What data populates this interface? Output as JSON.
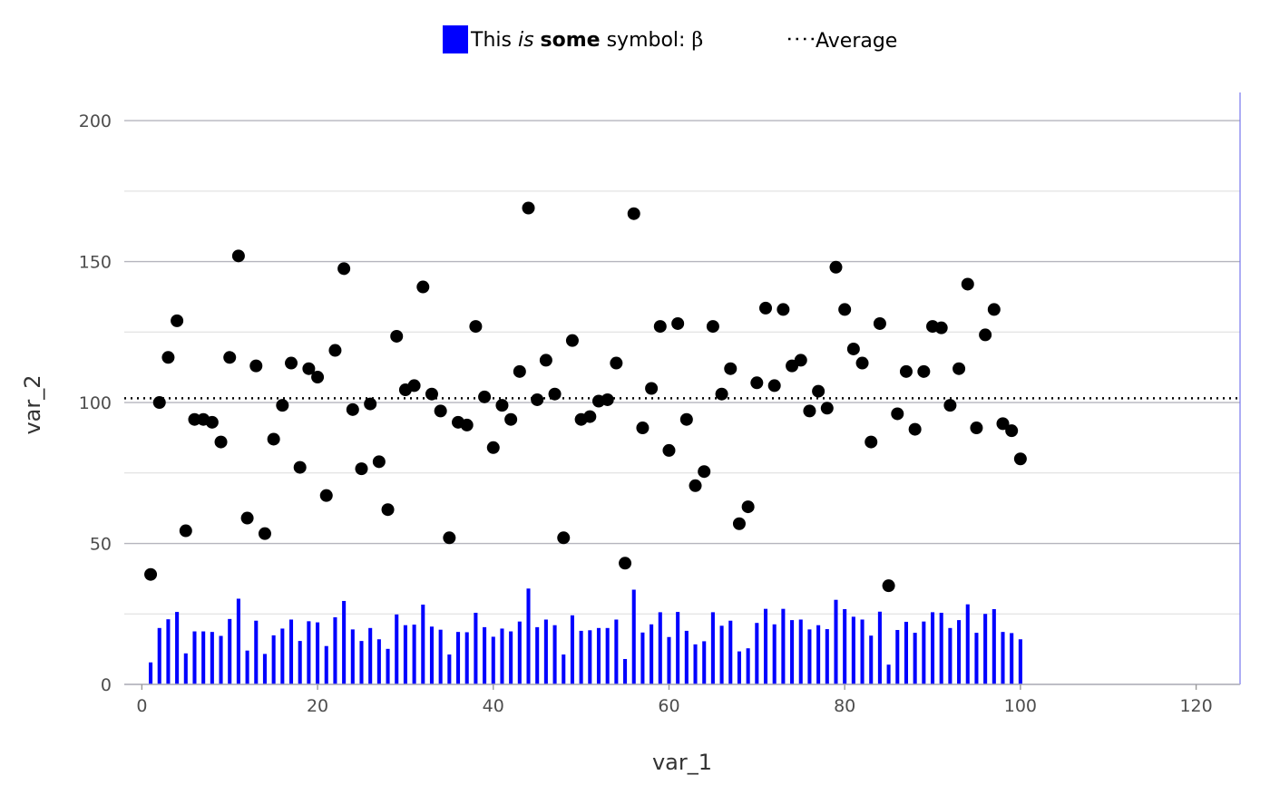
{
  "chart_data": {
    "type": "bar",
    "xlabel": "var_1",
    "ylabel": "var_2",
    "xlim": [
      -2,
      125
    ],
    "ylim": [
      0,
      210
    ],
    "x_ticks": [
      0,
      20,
      40,
      60,
      80,
      100,
      120
    ],
    "y_ticks": [
      0,
      50,
      100,
      150,
      200
    ],
    "grid": true,
    "legend_position": "top",
    "legend": {
      "bar_label_parts": [
        {
          "text": "This ",
          "style": "normal"
        },
        {
          "text": "is",
          "style": "italic"
        },
        {
          "text": " ",
          "style": "normal"
        },
        {
          "text": "some",
          "style": "bold"
        },
        {
          "text": " symbol: ",
          "style": "normal"
        },
        {
          "text": "β",
          "style": "serif"
        }
      ],
      "average_label": "Average"
    },
    "colors": {
      "bars": "#0000ff",
      "points": "#000000",
      "average_line": "#000000",
      "grid": "#cccccc",
      "panel_right_border": "#7777ee"
    },
    "x": [
      1,
      2,
      3,
      4,
      5,
      6,
      7,
      8,
      9,
      10,
      11,
      12,
      13,
      14,
      15,
      16,
      17,
      18,
      19,
      20,
      21,
      22,
      23,
      24,
      25,
      26,
      27,
      28,
      29,
      30,
      31,
      32,
      33,
      34,
      35,
      36,
      37,
      38,
      39,
      40,
      41,
      42,
      43,
      44,
      45,
      46,
      47,
      48,
      49,
      50,
      51,
      52,
      53,
      54,
      55,
      56,
      57,
      58,
      59,
      60,
      61,
      62,
      63,
      64,
      65,
      66,
      67,
      68,
      69,
      70,
      71,
      72,
      73,
      74,
      75,
      76,
      77,
      78,
      79,
      80,
      81,
      82,
      83,
      84,
      85,
      86,
      87,
      88,
      89,
      90,
      91,
      92,
      93,
      94,
      95,
      96,
      97,
      98,
      99,
      100
    ],
    "bar_values": [
      7.8,
      20.0,
      23.1,
      25.7,
      11.0,
      18.8,
      18.8,
      18.6,
      17.2,
      23.2,
      30.4,
      12.0,
      22.6,
      10.8,
      17.4,
      19.8,
      23.0,
      15.4,
      22.4,
      22.0,
      13.6,
      23.8,
      29.6,
      19.5,
      15.4,
      20.0,
      16.0,
      12.6,
      24.8,
      21.0,
      21.2,
      28.3,
      20.5,
      19.4,
      10.6,
      18.6,
      18.5,
      25.4,
      20.3,
      16.9,
      19.8,
      18.8,
      22.3,
      34.0,
      20.3,
      23.0,
      21.0,
      10.6,
      24.5,
      19.0,
      19.2,
      20.0,
      20.0,
      23.0,
      9.0,
      33.6,
      18.4,
      21.3,
      25.6,
      16.8,
      25.7,
      19.0,
      14.2,
      15.3,
      25.6,
      20.8,
      22.6,
      11.7,
      12.8,
      21.8,
      26.8,
      21.3,
      26.8,
      22.8,
      23.0,
      19.5,
      21.0,
      19.6,
      30.0,
      26.7,
      24.0,
      23.0,
      17.3,
      25.8,
      7.0,
      19.3,
      22.2,
      18.3,
      22.3,
      25.6,
      25.4,
      20.0,
      22.8,
      28.4,
      18.3,
      25.0,
      26.7,
      18.6,
      18.2,
      16.0
    ],
    "point_values": [
      39,
      100,
      116,
      129,
      54.5,
      94,
      94,
      93,
      86,
      116,
      152,
      59,
      113,
      53.5,
      87,
      99,
      114,
      77,
      112,
      109,
      67,
      118.5,
      147.5,
      97.5,
      76.5,
      99.5,
      79,
      62,
      123.5,
      104.5,
      106,
      141,
      103,
      97,
      52,
      93,
      92,
      127,
      102,
      84,
      99,
      94,
      111,
      169,
      101,
      115,
      103,
      52,
      122,
      94,
      95,
      100.5,
      101,
      114,
      43,
      167,
      91,
      105,
      127,
      83,
      128,
      94,
      70.5,
      75.5,
      127,
      103,
      112,
      57,
      63,
      107,
      133.5,
      106,
      133,
      113,
      115,
      97,
      104,
      98,
      148,
      133,
      119,
      114,
      86,
      128,
      35,
      96,
      111,
      90.5,
      111,
      127,
      126.5,
      99,
      112,
      142,
      91,
      124,
      133,
      92.5,
      90,
      80
    ],
    "average": 101.5
  }
}
